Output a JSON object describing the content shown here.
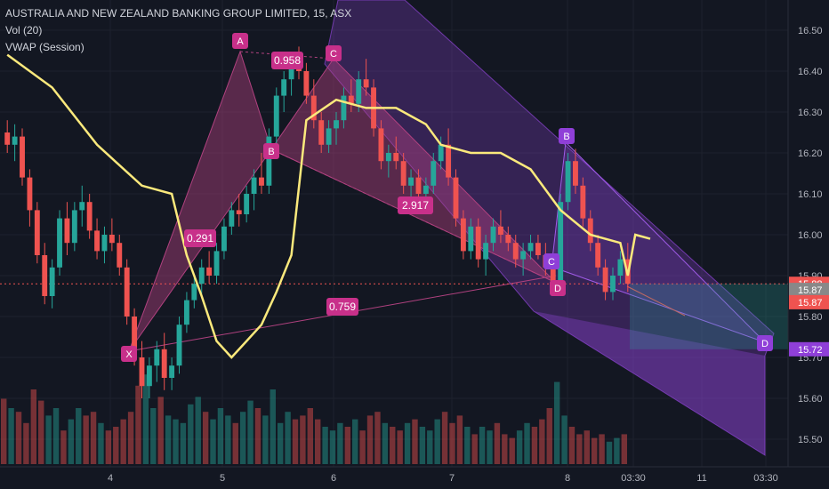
{
  "header": {
    "title": "AUSTRALIA AND NEW ZEALAND BANKING GROUP LIMITED, 15, ASX",
    "indicator1": "Vol (20)",
    "indicator2": "VWAP (Session)"
  },
  "colors": {
    "background": "#131722",
    "up": "#26a69a",
    "down": "#ef5350",
    "vwap": "#fbe97c",
    "pattern_pink": "#b0417f",
    "channel_purple": "#8e44d6",
    "label_pink": "#c8308a",
    "label_purple": "#8f3fd8"
  },
  "chart_data": {
    "type": "candlestick",
    "symbol": "AUSTRALIA AND NEW ZEALAND BANKING GROUP LIMITED",
    "interval": "15",
    "exchange": "ASX",
    "y_ticks": [
      "16.50",
      "16.40",
      "16.30",
      "16.20",
      "16.10",
      "16.00",
      "15.90",
      "15.80",
      "15.70",
      "15.60",
      "15.50"
    ],
    "ylim": [
      15.45,
      16.56
    ],
    "x_ticks": [
      "4",
      "5",
      "6",
      "7",
      "8",
      "03:30",
      "11",
      "03:30"
    ],
    "price_tags": [
      {
        "label": "15.88",
        "value": 15.88,
        "color": "#ef5350"
      },
      {
        "label": "15.87",
        "value": 15.865,
        "color": "#888888"
      },
      {
        "label": "15.87",
        "value": 15.835,
        "color": "#ef5350"
      },
      {
        "label": "15.72",
        "value": 15.72,
        "color": "#8f3fd8"
      }
    ],
    "pattern1_points": [
      {
        "label": "X",
        "price": 15.71
      },
      {
        "label": "A",
        "price": 16.45
      },
      {
        "label": "B",
        "price": 16.21
      },
      {
        "label": "C",
        "price": 16.43
      },
      {
        "label": "D",
        "price": 15.89
      }
    ],
    "pattern2_points": [
      {
        "label": "C",
        "price": 15.91
      },
      {
        "label": "B",
        "price": 16.21
      },
      {
        "label": "D",
        "price": 15.72
      }
    ],
    "ratios": [
      "0.958",
      "0.291",
      "2.917",
      "0.759"
    ],
    "candles": [
      [
        16.25,
        16.28,
        16.2,
        16.22
      ],
      [
        16.22,
        16.27,
        16.18,
        16.24
      ],
      [
        16.24,
        16.26,
        16.12,
        16.14
      ],
      [
        16.14,
        16.16,
        16.02,
        16.06
      ],
      [
        16.06,
        16.08,
        15.93,
        15.95
      ],
      [
        15.95,
        15.98,
        15.83,
        15.85
      ],
      [
        15.85,
        15.94,
        15.82,
        15.92
      ],
      [
        15.92,
        16.06,
        15.9,
        16.04
      ],
      [
        16.04,
        16.08,
        15.95,
        15.98
      ],
      [
        15.98,
        16.08,
        15.96,
        16.06
      ],
      [
        16.06,
        16.12,
        16.02,
        16.08
      ],
      [
        16.08,
        16.1,
        15.99,
        16.01
      ],
      [
        16.01,
        16.04,
        15.94,
        15.96
      ],
      [
        15.96,
        16.02,
        15.93,
        16.0
      ],
      [
        16.0,
        16.04,
        15.96,
        15.98
      ],
      [
        15.98,
        16.0,
        15.9,
        15.92
      ],
      [
        15.92,
        15.94,
        15.78,
        15.8
      ],
      [
        15.8,
        15.82,
        15.68,
        15.7
      ],
      [
        15.7,
        15.74,
        15.6,
        15.63
      ],
      [
        15.63,
        15.7,
        15.6,
        15.68
      ],
      [
        15.68,
        15.74,
        15.64,
        15.72
      ],
      [
        15.72,
        15.76,
        15.62,
        15.65
      ],
      [
        15.65,
        15.7,
        15.62,
        15.68
      ],
      [
        15.68,
        15.8,
        15.66,
        15.78
      ],
      [
        15.78,
        15.86,
        15.76,
        15.84
      ],
      [
        15.84,
        15.9,
        15.82,
        15.88
      ],
      [
        15.88,
        15.94,
        15.85,
        15.92
      ],
      [
        15.92,
        15.96,
        15.88,
        15.9
      ],
      [
        15.9,
        15.98,
        15.88,
        15.96
      ],
      [
        15.96,
        16.04,
        15.94,
        16.02
      ],
      [
        16.02,
        16.08,
        16.0,
        16.06
      ],
      [
        16.06,
        16.1,
        16.02,
        16.05
      ],
      [
        16.05,
        16.12,
        16.03,
        16.1
      ],
      [
        16.1,
        16.16,
        16.06,
        16.14
      ],
      [
        16.14,
        16.2,
        16.1,
        16.12
      ],
      [
        16.12,
        16.26,
        16.1,
        16.24
      ],
      [
        16.24,
        16.36,
        16.22,
        16.34
      ],
      [
        16.34,
        16.4,
        16.3,
        16.38
      ],
      [
        16.38,
        16.43,
        16.34,
        16.42
      ],
      [
        16.42,
        16.46,
        16.38,
        16.4
      ],
      [
        16.4,
        16.42,
        16.32,
        16.34
      ],
      [
        16.34,
        16.38,
        16.26,
        16.28
      ],
      [
        16.28,
        16.3,
        16.2,
        16.22
      ],
      [
        16.22,
        16.28,
        16.2,
        16.26
      ],
      [
        16.26,
        16.3,
        16.22,
        16.28
      ],
      [
        16.28,
        16.36,
        16.26,
        16.34
      ],
      [
        16.34,
        16.38,
        16.3,
        16.32
      ],
      [
        16.32,
        16.4,
        16.3,
        16.38
      ],
      [
        16.38,
        16.43,
        16.34,
        16.36
      ],
      [
        16.36,
        16.38,
        16.24,
        16.26
      ],
      [
        16.26,
        16.28,
        16.16,
        16.18
      ],
      [
        16.18,
        16.22,
        16.14,
        16.2
      ],
      [
        16.2,
        16.24,
        16.16,
        16.18
      ],
      [
        16.18,
        16.2,
        16.1,
        16.12
      ],
      [
        16.12,
        16.16,
        16.08,
        16.14
      ],
      [
        16.14,
        16.16,
        16.08,
        16.1
      ],
      [
        16.1,
        16.14,
        16.06,
        16.12
      ],
      [
        16.12,
        16.2,
        16.1,
        16.18
      ],
      [
        16.18,
        16.24,
        16.16,
        16.22
      ],
      [
        16.22,
        16.26,
        16.12,
        16.14
      ],
      [
        16.14,
        16.16,
        16.02,
        16.04
      ],
      [
        16.04,
        16.06,
        15.94,
        15.96
      ],
      [
        15.96,
        16.04,
        15.94,
        16.02
      ],
      [
        16.02,
        16.04,
        15.92,
        15.94
      ],
      [
        15.94,
        16.0,
        15.9,
        15.98
      ],
      [
        15.98,
        16.04,
        15.96,
        16.02
      ],
      [
        16.02,
        16.06,
        15.98,
        16.0
      ],
      [
        16.0,
        16.02,
        15.96,
        15.98
      ],
      [
        15.98,
        16.0,
        15.92,
        15.94
      ],
      [
        15.94,
        15.98,
        15.9,
        15.96
      ],
      [
        15.96,
        16.0,
        15.94,
        15.98
      ],
      [
        15.98,
        16.0,
        15.94,
        15.95
      ],
      [
        15.95,
        15.98,
        15.9,
        15.92
      ],
      [
        15.92,
        15.94,
        15.86,
        15.88
      ],
      [
        15.88,
        16.1,
        15.86,
        16.08
      ],
      [
        16.08,
        16.2,
        16.06,
        16.18
      ],
      [
        16.18,
        16.21,
        16.1,
        16.12
      ],
      [
        16.12,
        16.14,
        16.02,
        16.04
      ],
      [
        16.04,
        16.06,
        15.96,
        15.98
      ],
      [
        15.98,
        16.0,
        15.9,
        15.92
      ],
      [
        15.92,
        15.94,
        15.84,
        15.86
      ],
      [
        15.86,
        15.92,
        15.84,
        15.9
      ],
      [
        15.9,
        15.96,
        15.88,
        15.94
      ],
      [
        15.94,
        15.98,
        15.86,
        15.88
      ]
    ],
    "vwap_points": [
      [
        0,
        16.44
      ],
      [
        6,
        16.36
      ],
      [
        12,
        16.22
      ],
      [
        18,
        16.12
      ],
      [
        22,
        16.1
      ],
      [
        24,
        15.95
      ],
      [
        26,
        15.85
      ],
      [
        28,
        15.74
      ],
      [
        30,
        15.7
      ],
      [
        32,
        15.74
      ],
      [
        34,
        15.78
      ],
      [
        36,
        15.86
      ],
      [
        38,
        15.95
      ],
      [
        40,
        16.28
      ],
      [
        44,
        16.33
      ],
      [
        48,
        16.31
      ],
      [
        52,
        16.31
      ],
      [
        54,
        16.29
      ],
      [
        56,
        16.27
      ],
      [
        58,
        16.22
      ],
      [
        62,
        16.2
      ],
      [
        66,
        16.2
      ],
      [
        70,
        16.16
      ],
      [
        74,
        16.06
      ],
      [
        78,
        16.0
      ],
      [
        82,
        15.98
      ],
      [
        83,
        15.9
      ],
      [
        84,
        16.0
      ],
      [
        86,
        15.99
      ]
    ],
    "volumes": [
      35,
      30,
      28,
      22,
      40,
      34,
      26,
      30,
      18,
      24,
      30,
      26,
      28,
      22,
      18,
      20,
      24,
      28,
      42,
      48,
      30,
      36,
      26,
      24,
      22,
      32,
      36,
      28,
      24,
      30,
      26,
      22,
      28,
      34,
      30,
      26,
      40,
      22,
      28,
      24,
      26,
      30,
      24,
      20,
      18,
      22,
      20,
      24,
      18,
      26,
      28,
      22,
      20,
      18,
      22,
      24,
      20,
      18,
      24,
      28,
      22,
      26,
      20,
      16,
      20,
      18,
      22,
      16,
      14,
      18,
      22,
      20,
      24,
      30,
      44,
      26,
      20,
      16,
      18,
      14,
      16,
      12,
      14,
      16
    ]
  }
}
